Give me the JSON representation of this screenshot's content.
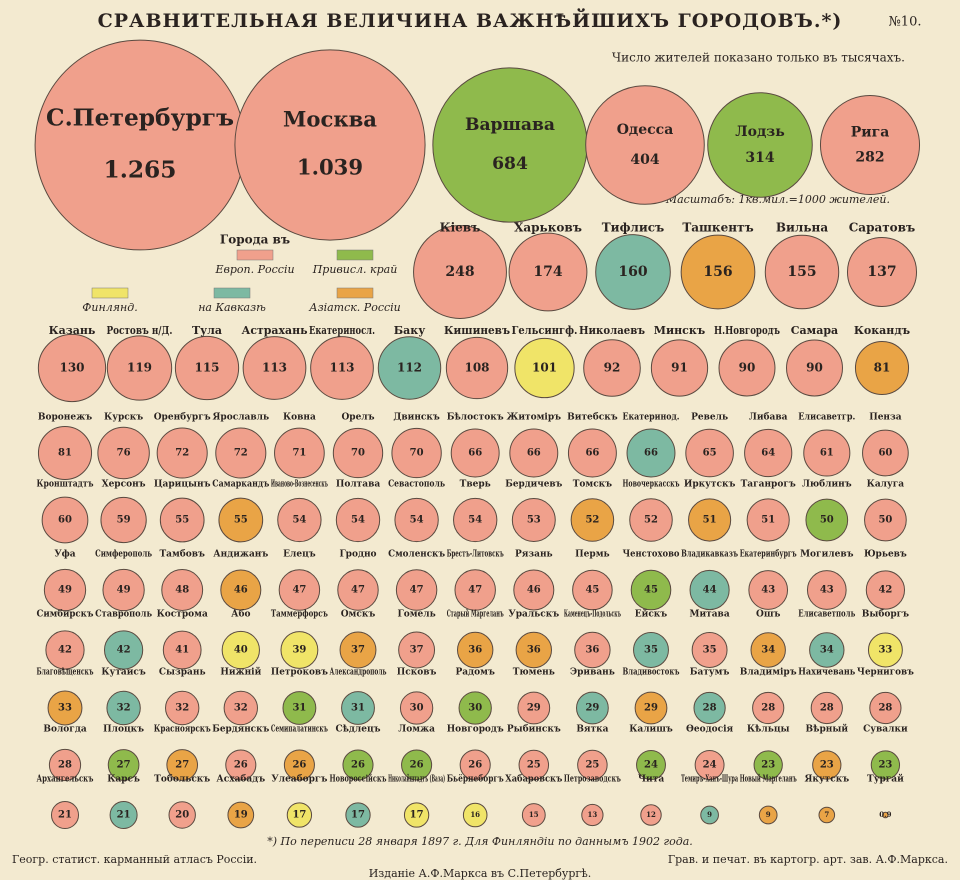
{
  "chart_data": {
    "type": "bubble",
    "title": "СРАВНИТЕЛЬНАЯ ВЕЛИЧИНА ВАЖНѢЙШИХЪ ГОРОДОВЪ.*)",
    "number_label": "№10.",
    "subtitle": "Число жителей показано только въ тысячахъ.",
    "scale_note": "Масштабъ: 1кв.мил.=1000 жителей.",
    "legend_title": "Города въ",
    "legend": [
      {
        "name": "Европ. Россiи",
        "color": "#f0a08c"
      },
      {
        "name": "Привисл. край",
        "color": "#8fba4c"
      },
      {
        "name": "Финлянд.",
        "color": "#f0e468"
      },
      {
        "name": "на Кавказѣ",
        "color": "#7db9a2"
      },
      {
        "name": "Азiатск. Россiи",
        "color": "#e9a446"
      }
    ],
    "cities": [
      {
        "name": "С.Петербургъ",
        "value": 1265,
        "value_label": "1.265",
        "color": "#f0a08c"
      },
      {
        "name": "Москва",
        "value": 1039,
        "value_label": "1.039",
        "color": "#f0a08c"
      },
      {
        "name": "Варшава",
        "value": 684,
        "color": "#8fba4c"
      },
      {
        "name": "Одесса",
        "value": 404,
        "color": "#f0a08c"
      },
      {
        "name": "Лодзь",
        "value": 314,
        "color": "#8fba4c"
      },
      {
        "name": "Рига",
        "value": 282,
        "color": "#f0a08c"
      },
      {
        "name": "Кiевъ",
        "value": 248,
        "color": "#f0a08c"
      },
      {
        "name": "Харьковъ",
        "value": 174,
        "color": "#f0a08c"
      },
      {
        "name": "Тифлисъ",
        "value": 160,
        "color": "#7db9a2"
      },
      {
        "name": "Ташкентъ",
        "value": 156,
        "color": "#e9a446"
      },
      {
        "name": "Вильна",
        "value": 155,
        "color": "#f0a08c"
      },
      {
        "name": "Саратовъ",
        "value": 137,
        "color": "#f0a08c"
      },
      {
        "name": "Казань",
        "value": 130,
        "color": "#f0a08c"
      },
      {
        "name": "Ростовъ н/Д.",
        "value": 119,
        "color": "#f0a08c"
      },
      {
        "name": "Тула",
        "value": 115,
        "color": "#f0a08c"
      },
      {
        "name": "Астрахань",
        "value": 113,
        "color": "#f0a08c"
      },
      {
        "name": "Екатериносл.",
        "value": 113,
        "color": "#f0a08c"
      },
      {
        "name": "Баку",
        "value": 112,
        "color": "#7db9a2"
      },
      {
        "name": "Кишиневъ",
        "value": 108,
        "color": "#f0a08c"
      },
      {
        "name": "Гельсингф.",
        "value": 101,
        "color": "#f0e468"
      },
      {
        "name": "Николаевъ",
        "value": 92,
        "color": "#f0a08c"
      },
      {
        "name": "Минскъ",
        "value": 91,
        "color": "#f0a08c"
      },
      {
        "name": "Н.Новгородъ",
        "value": 90,
        "color": "#f0a08c"
      },
      {
        "name": "Самара",
        "value": 90,
        "color": "#f0a08c"
      },
      {
        "name": "Кокандъ",
        "value": 81,
        "color": "#e9a446"
      },
      {
        "name": "Воронежъ",
        "value": 81,
        "color": "#f0a08c"
      },
      {
        "name": "Курскъ",
        "value": 76,
        "color": "#f0a08c"
      },
      {
        "name": "Оренбургъ",
        "value": 72,
        "color": "#f0a08c"
      },
      {
        "name": "Ярославль",
        "value": 72,
        "color": "#f0a08c"
      },
      {
        "name": "Ковна",
        "value": 71,
        "color": "#f0a08c"
      },
      {
        "name": "Орелъ",
        "value": 70,
        "color": "#f0a08c"
      },
      {
        "name": "Двинскъ",
        "value": 70,
        "color": "#f0a08c"
      },
      {
        "name": "Бѣлостокъ",
        "value": 66,
        "color": "#f0a08c"
      },
      {
        "name": "Житомiръ",
        "value": 66,
        "color": "#f0a08c"
      },
      {
        "name": "Витебскъ",
        "value": 66,
        "color": "#f0a08c"
      },
      {
        "name": "Екатеринод.",
        "value": 66,
        "color": "#7db9a2"
      },
      {
        "name": "Ревель",
        "value": 65,
        "color": "#f0a08c"
      },
      {
        "name": "Либава",
        "value": 64,
        "color": "#f0a08c"
      },
      {
        "name": "Елисаветгр.",
        "value": 61,
        "color": "#f0a08c"
      },
      {
        "name": "Пенза",
        "value": 60,
        "color": "#f0a08c"
      },
      {
        "name": "Кронштадтъ",
        "value": 60,
        "color": "#f0a08c"
      },
      {
        "name": "Херсонъ",
        "value": 59,
        "color": "#f0a08c"
      },
      {
        "name": "Царицынъ",
        "value": 55,
        "color": "#f0a08c"
      },
      {
        "name": "Самаркандъ",
        "value": 55,
        "color": "#e9a446"
      },
      {
        "name": "Иваново-Вознесенскъ",
        "value": 54,
        "color": "#f0a08c"
      },
      {
        "name": "Полтава",
        "value": 54,
        "color": "#f0a08c"
      },
      {
        "name": "Севастополь",
        "value": 54,
        "color": "#f0a08c"
      },
      {
        "name": "Тверь",
        "value": 54,
        "color": "#f0a08c"
      },
      {
        "name": "Бердичевъ",
        "value": 53,
        "color": "#f0a08c"
      },
      {
        "name": "Томскъ",
        "value": 52,
        "color": "#e9a446"
      },
      {
        "name": "Новочеркасскъ",
        "value": 52,
        "color": "#f0a08c"
      },
      {
        "name": "Иркутскъ",
        "value": 51,
        "color": "#e9a446"
      },
      {
        "name": "Таганрогъ",
        "value": 51,
        "color": "#f0a08c"
      },
      {
        "name": "Люблинъ",
        "value": 50,
        "color": "#8fba4c"
      },
      {
        "name": "Калуга",
        "value": 50,
        "color": "#f0a08c"
      },
      {
        "name": "Уфа",
        "value": 49,
        "color": "#f0a08c"
      },
      {
        "name": "Симферополь",
        "value": 49,
        "color": "#f0a08c"
      },
      {
        "name": "Тамбовъ",
        "value": 48,
        "color": "#f0a08c"
      },
      {
        "name": "Андижанъ",
        "value": 46,
        "color": "#e9a446"
      },
      {
        "name": "Елецъ",
        "value": 47,
        "color": "#f0a08c"
      },
      {
        "name": "Гродно",
        "value": 47,
        "color": "#f0a08c"
      },
      {
        "name": "Смоленскъ",
        "value": 47,
        "color": "#f0a08c"
      },
      {
        "name": "Брестъ-Литовскъ",
        "value": 47,
        "color": "#f0a08c"
      },
      {
        "name": "Рязань",
        "value": 46,
        "color": "#f0a08c"
      },
      {
        "name": "Пермь",
        "value": 45,
        "color": "#f0a08c"
      },
      {
        "name": "Ченстохово",
        "value": 45,
        "color": "#8fba4c"
      },
      {
        "name": "Владикавказъ",
        "value": 44,
        "color": "#7db9a2"
      },
      {
        "name": "Екатеринбургъ",
        "value": 43,
        "color": "#f0a08c"
      },
      {
        "name": "Могилевъ",
        "value": 43,
        "color": "#f0a08c"
      },
      {
        "name": "Юрьевъ",
        "value": 42,
        "color": "#f0a08c"
      },
      {
        "name": "Симбирскъ",
        "value": 42,
        "color": "#f0a08c"
      },
      {
        "name": "Ставрополь",
        "value": 42,
        "color": "#7db9a2"
      },
      {
        "name": "Кострома",
        "value": 41,
        "color": "#f0a08c"
      },
      {
        "name": "Або",
        "value": 40,
        "color": "#f0e468"
      },
      {
        "name": "Таммерфорсъ",
        "value": 39,
        "color": "#f0e468"
      },
      {
        "name": "Омскъ",
        "value": 37,
        "color": "#e9a446"
      },
      {
        "name": "Гомель",
        "value": 37,
        "color": "#f0a08c"
      },
      {
        "name": "Старый Маргеланъ",
        "value": 36,
        "color": "#e9a446"
      },
      {
        "name": "Уральскъ",
        "value": 36,
        "color": "#e9a446"
      },
      {
        "name": "Каменецъ-Подольскъ",
        "value": 36,
        "color": "#f0a08c"
      },
      {
        "name": "Ейскъ",
        "value": 35,
        "color": "#7db9a2"
      },
      {
        "name": "Митава",
        "value": 35,
        "color": "#f0a08c"
      },
      {
        "name": "Ошъ",
        "value": 34,
        "color": "#e9a446"
      },
      {
        "name": "Елисаветполь",
        "value": 34,
        "color": "#7db9a2"
      },
      {
        "name": "Выборгъ",
        "value": 33,
        "color": "#f0e468"
      },
      {
        "name": "Благовѣщенскъ",
        "value": 33,
        "color": "#e9a446"
      },
      {
        "name": "Кутаисъ",
        "value": 32,
        "color": "#7db9a2"
      },
      {
        "name": "Сызрань",
        "value": 32,
        "color": "#f0a08c"
      },
      {
        "name": "Нижнiй",
        "value": 32,
        "color": "#f0a08c"
      },
      {
        "name": "Петроковъ",
        "value": 31,
        "color": "#8fba4c"
      },
      {
        "name": "Александрополь",
        "value": 31,
        "color": "#7db9a2"
      },
      {
        "name": "Псковъ",
        "value": 30,
        "color": "#f0a08c"
      },
      {
        "name": "Радомъ",
        "value": 30,
        "color": "#8fba4c"
      },
      {
        "name": "Тюмень",
        "value": 29,
        "color": "#f0a08c"
      },
      {
        "name": "Эривань",
        "value": 29,
        "color": "#7db9a2"
      },
      {
        "name": "Владивостокъ",
        "value": 29,
        "color": "#e9a446"
      },
      {
        "name": "Батумъ",
        "value": 28,
        "color": "#7db9a2"
      },
      {
        "name": "Владимiръ",
        "value": 28,
        "color": "#f0a08c"
      },
      {
        "name": "Нахичевань",
        "value": 28,
        "color": "#f0a08c"
      },
      {
        "name": "Черниговъ",
        "value": 28,
        "color": "#f0a08c"
      },
      {
        "name": "Вологда",
        "value": 28,
        "color": "#f0a08c"
      },
      {
        "name": "Плоцкъ",
        "value": 27,
        "color": "#8fba4c"
      },
      {
        "name": "Красноярскъ",
        "value": 27,
        "color": "#e9a446"
      },
      {
        "name": "Бердянскъ",
        "value": 26,
        "color": "#f0a08c"
      },
      {
        "name": "Семипалатинскъ",
        "value": 26,
        "color": "#e9a446"
      },
      {
        "name": "Сѣдлецъ",
        "value": 26,
        "color": "#8fba4c"
      },
      {
        "name": "Ломжа",
        "value": 26,
        "color": "#8fba4c"
      },
      {
        "name": "Новгородъ",
        "value": 26,
        "color": "#f0a08c"
      },
      {
        "name": "Рыбинскъ",
        "value": 25,
        "color": "#f0a08c"
      },
      {
        "name": "Вятка",
        "value": 25,
        "color": "#f0a08c"
      },
      {
        "name": "Калишъ",
        "value": 24,
        "color": "#8fba4c"
      },
      {
        "name": "Өеодосiя",
        "value": 24,
        "color": "#f0a08c"
      },
      {
        "name": "Кѣльцы",
        "value": 23,
        "color": "#8fba4c"
      },
      {
        "name": "Вѣрный",
        "value": 23,
        "color": "#e9a446"
      },
      {
        "name": "Сувалки",
        "value": 23,
        "color": "#8fba4c"
      },
      {
        "name": "Архангельскъ",
        "value": 21,
        "color": "#f0a08c"
      },
      {
        "name": "Карсъ",
        "value": 21,
        "color": "#7db9a2"
      },
      {
        "name": "Тобольскъ",
        "value": 20,
        "color": "#f0a08c"
      },
      {
        "name": "Асхабадъ",
        "value": 19,
        "color": "#e9a446"
      },
      {
        "name": "Улеаборгъ",
        "value": 17,
        "color": "#f0e468"
      },
      {
        "name": "Новороссiйскъ",
        "value": 17,
        "color": "#7db9a2"
      },
      {
        "name": "Николайштадтъ (Ваза)",
        "value": 17,
        "color": "#f0e468"
      },
      {
        "name": "Бьёрнеборгъ",
        "value": 16,
        "color": "#f0e468"
      },
      {
        "name": "Хабаровскъ",
        "value": 15,
        "color": "#f0a08c"
      },
      {
        "name": "Петрозаводскъ",
        "value": 13,
        "color": "#f0a08c"
      },
      {
        "name": "Чита",
        "value": 12,
        "color": "#f0a08c"
      },
      {
        "name": "Темиръ-Ханъ-Шура",
        "value": 9,
        "color": "#7db9a2"
      },
      {
        "name": "Новый Маргеланъ",
        "value": 9,
        "color": "#e9a446"
      },
      {
        "name": "Якутскъ",
        "value": 7,
        "color": "#e9a446"
      },
      {
        "name": "Тургай",
        "value": 0.9,
        "color": "#e9a446"
      }
    ],
    "footnote": "*) По переписи 28 января 1897 г. Для Финляндiи по даннымъ 1902 года."
  },
  "footer": {
    "left": "Геогр. статист. карманный атласъ Россiи.",
    "right": "Грав. и печат. въ картогр. арт. зав. А.Ф.Маркса.",
    "center": "Изданiе А.Ф.Маркса въ С.Петербургѣ."
  }
}
